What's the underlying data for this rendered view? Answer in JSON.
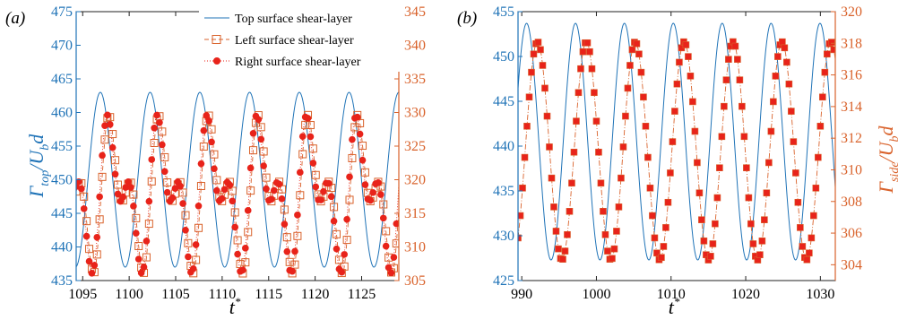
{
  "colors": {
    "blue": "#1f73b7",
    "orange": "#d9622b",
    "red": "#e8231a",
    "axis_black": "#222222"
  },
  "chart_data": [
    {
      "type": "line",
      "panel_label": "(a)",
      "xlabel": "t*",
      "ylabel_left": "Γtop/Ubd",
      "ylabel_right": "",
      "xlim": [
        1094.3,
        1129
      ],
      "ylim_left": [
        435,
        475
      ],
      "ylim_right": [
        305,
        345
      ],
      "x_ticks": [
        1095,
        1100,
        1105,
        1110,
        1115,
        1120,
        1125
      ],
      "y_ticks_left": [
        435,
        440,
        445,
        450,
        455,
        460,
        465,
        470,
        475
      ],
      "y_ticks_right": [
        305,
        310,
        315,
        320,
        325,
        330,
        335,
        340,
        345
      ],
      "legend": {
        "placement": "top-right",
        "entries": [
          "Top surface shear-layer",
          "Left surface shear-layer",
          "Right surface shear-layer"
        ]
      },
      "series": [
        {
          "name": "Top surface shear-layer",
          "axis": "left",
          "style": "line",
          "period": 5.35,
          "mean": 450,
          "amplitude": 13,
          "peak_x": 1096.9
        },
        {
          "name": "Left surface shear-layer",
          "axis": "right",
          "style": "dashed-square",
          "period": 5.35,
          "components": [
            {
              "amplitude": 7.5,
              "phase_peak_x": 1103.7
            },
            {
              "amplitude": 6.0,
              "phase_peak_x": 1103.0,
              "harmonic": 2
            }
          ],
          "mean": 318,
          "sample_step": 0.28
        },
        {
          "name": "Right surface shear-layer",
          "axis": "right",
          "style": "dotted-circle",
          "period": 5.35,
          "components": [
            {
              "amplitude": 7.5,
              "phase_peak_x": 1098.2
            },
            {
              "amplitude": 6.0,
              "phase_peak_x": 1097.5,
              "harmonic": 2
            }
          ],
          "mean": 318,
          "sample_step": 0.28
        }
      ]
    },
    {
      "type": "line",
      "panel_label": "(b)",
      "xlabel": "t*",
      "ylabel_left": "",
      "ylabel_right": "Γside/Ubd",
      "xlim": [
        989.5,
        1032
      ],
      "ylim_left": [
        425,
        455
      ],
      "ylim_right": [
        303,
        320
      ],
      "x_ticks": [
        990,
        1000,
        1010,
        1020,
        1030
      ],
      "y_ticks_left": [
        425,
        430,
        435,
        440,
        445,
        450,
        455
      ],
      "y_ticks_right": [
        304,
        306,
        308,
        310,
        312,
        314,
        316,
        318,
        320
      ],
      "series": [
        {
          "name": "",
          "axis": "left",
          "style": "line",
          "period": 6.55,
          "mean": 440.5,
          "amplitude": 13.2,
          "peak_x": 997.2
        },
        {
          "name": "",
          "axis": "right",
          "style": "dashdot-square",
          "period": 6.55,
          "mean": 311.2,
          "amplitude": 6.9,
          "peak_x": 992.1,
          "sample_step": 0.3
        }
      ]
    }
  ]
}
